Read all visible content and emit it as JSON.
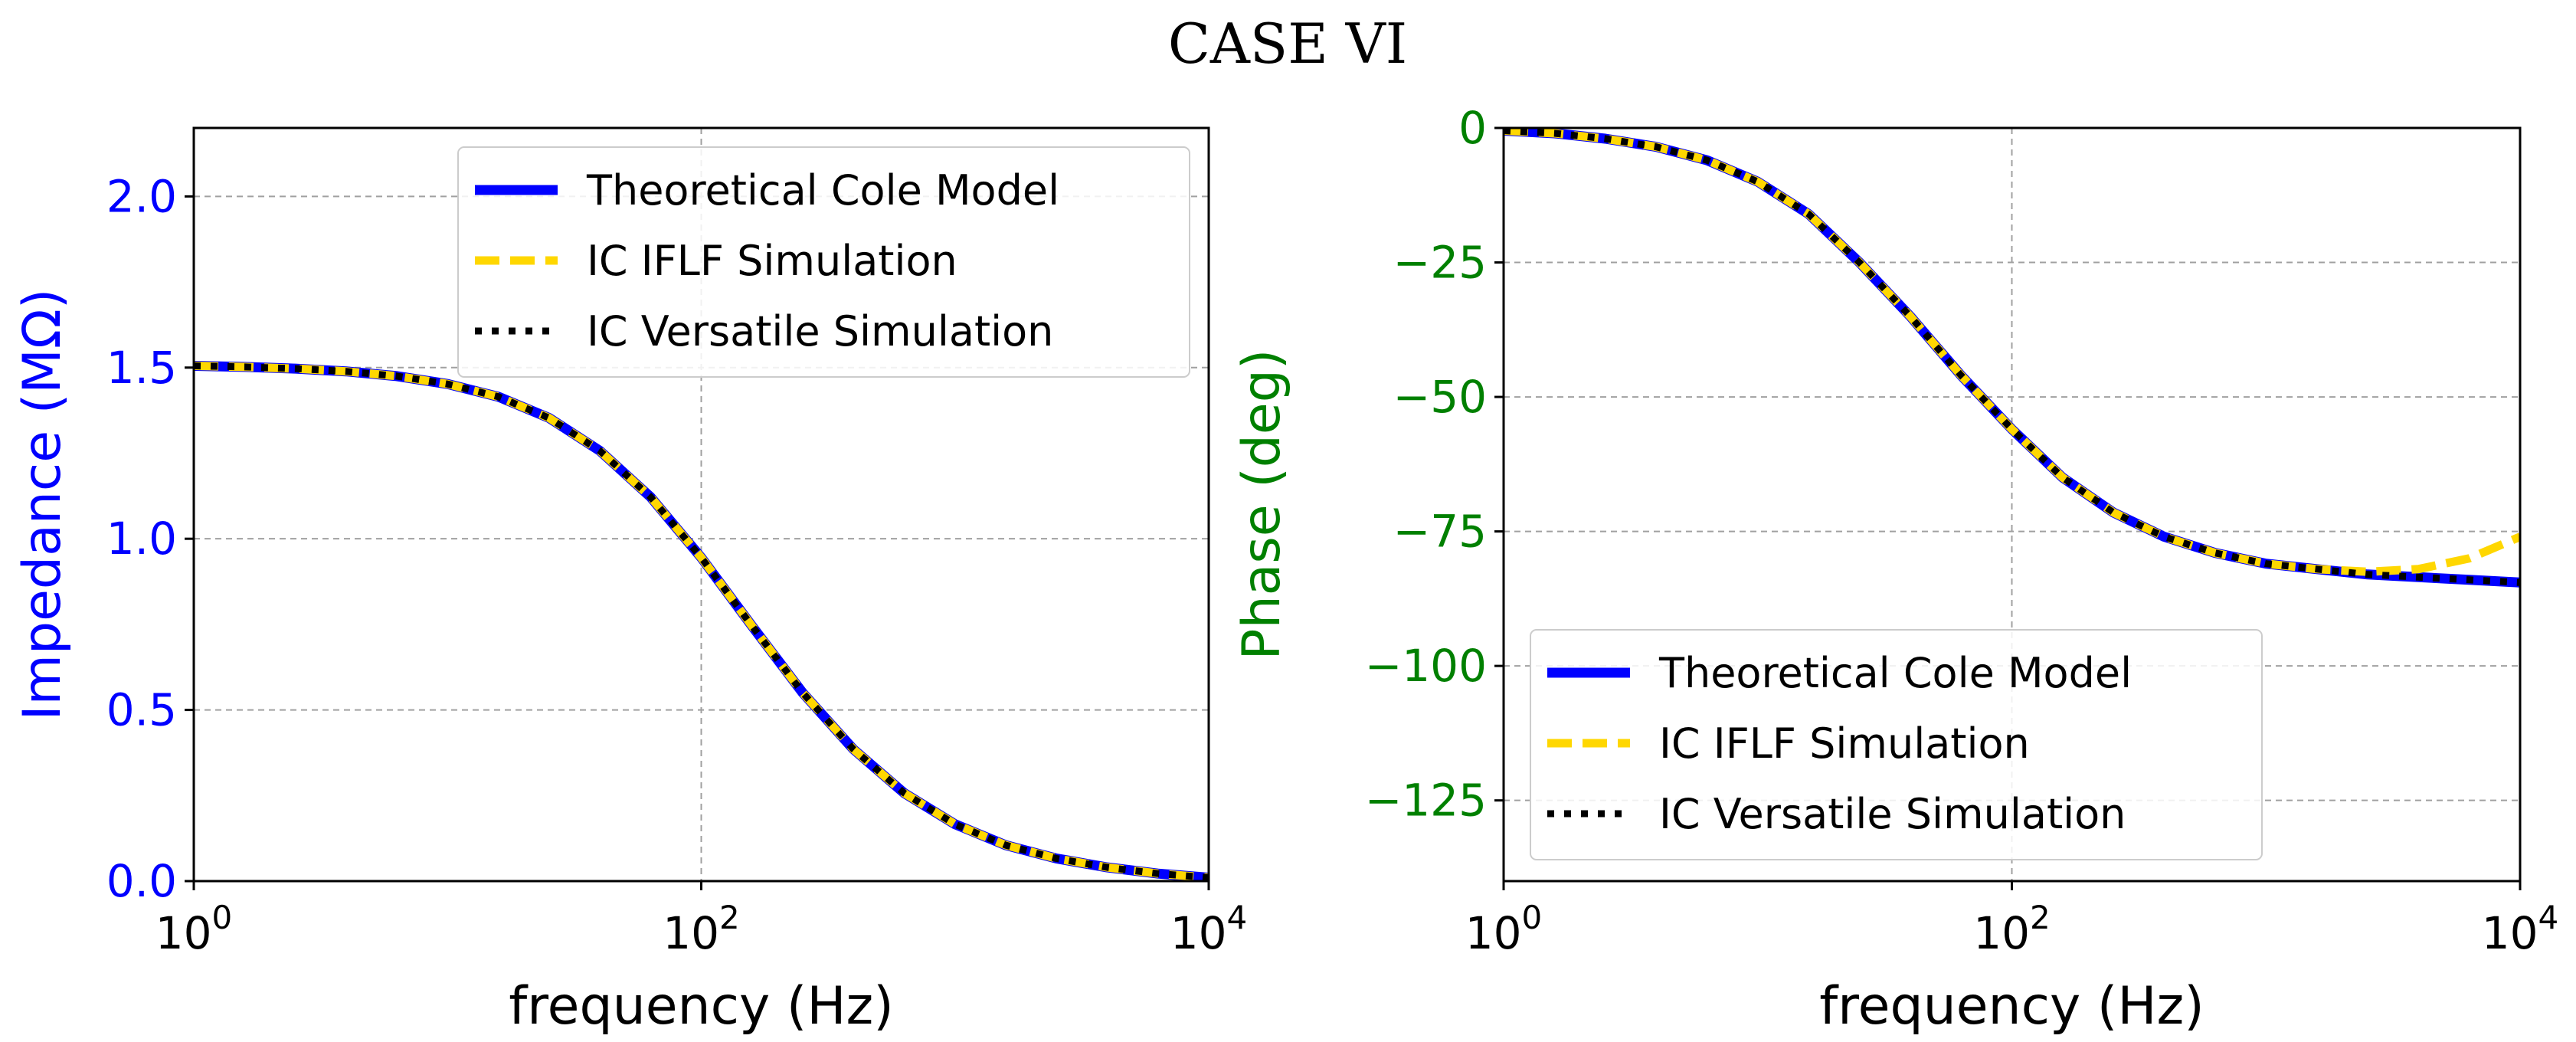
{
  "title": "CASE VI",
  "chart_data": [
    {
      "type": "line",
      "xlabel": "frequency (Hz)",
      "ylabel": "Impedance (MΩ)",
      "xscale": "log",
      "xlim": [
        1,
        10000
      ],
      "ylim": [
        0,
        2.2
      ],
      "x_ticks": [
        {
          "value": 1,
          "base": "10",
          "exp": "0"
        },
        {
          "value": 100,
          "base": "10",
          "exp": "2"
        },
        {
          "value": 10000,
          "base": "10",
          "exp": "4"
        }
      ],
      "y_ticks": [
        {
          "value": 0.0,
          "label": "0.0"
        },
        {
          "value": 0.5,
          "label": "0.5"
        },
        {
          "value": 1.0,
          "label": "1.0"
        },
        {
          "value": 1.5,
          "label": "1.5"
        },
        {
          "value": 2.0,
          "label": "2.0"
        }
      ],
      "ylabel_color": "#0000ff",
      "ytick_color": "#0000ff",
      "grid": true,
      "legend_position": "upper right",
      "x": [
        1,
        1.585,
        2.512,
        3.981,
        6.31,
        10,
        15.85,
        25.12,
        39.81,
        63.1,
        100,
        158.5,
        251.2,
        398.1,
        631,
        1000,
        1585,
        2512,
        3981,
        6310,
        10000
      ],
      "series": [
        {
          "name": "Theoretical Cole Model",
          "color": "#0000ff",
          "style": "solid",
          "values": [
            1.505,
            1.502,
            1.497,
            1.489,
            1.475,
            1.452,
            1.415,
            1.353,
            1.257,
            1.122,
            0.945,
            0.745,
            0.55,
            0.385,
            0.257,
            0.166,
            0.105,
            0.066,
            0.04,
            0.022,
            0.01
          ]
        },
        {
          "name": "IC IFLF Simulation",
          "color": "#ffd700",
          "style": "dashed",
          "values": [
            1.505,
            1.502,
            1.497,
            1.489,
            1.475,
            1.452,
            1.415,
            1.353,
            1.257,
            1.122,
            0.945,
            0.745,
            0.55,
            0.385,
            0.257,
            0.166,
            0.105,
            0.066,
            0.04,
            0.022,
            0.01
          ]
        },
        {
          "name": "IC Versatile Simulation",
          "color": "#000000",
          "style": "dotted",
          "values": [
            1.505,
            1.502,
            1.497,
            1.489,
            1.475,
            1.452,
            1.415,
            1.353,
            1.257,
            1.122,
            0.945,
            0.745,
            0.55,
            0.385,
            0.257,
            0.166,
            0.105,
            0.066,
            0.04,
            0.022,
            0.01
          ]
        }
      ]
    },
    {
      "type": "line",
      "xlabel": "frequency (Hz)",
      "ylabel": "Phase (deg)",
      "xscale": "log",
      "xlim": [
        1,
        10000
      ],
      "ylim": [
        -140,
        0
      ],
      "x_ticks": [
        {
          "value": 1,
          "base": "10",
          "exp": "0"
        },
        {
          "value": 100,
          "base": "10",
          "exp": "2"
        },
        {
          "value": 10000,
          "base": "10",
          "exp": "4"
        }
      ],
      "y_ticks": [
        {
          "value": 0,
          "label": "0"
        },
        {
          "value": -25,
          "label": "−25"
        },
        {
          "value": -50,
          "label": "−50"
        },
        {
          "value": -75,
          "label": "−75"
        },
        {
          "value": -100,
          "label": "−100"
        },
        {
          "value": -125,
          "label": "−125"
        }
      ],
      "ylabel_color": "#008000",
      "ytick_color": "#008000",
      "grid": true,
      "legend_position": "lower left",
      "x": [
        1,
        1.585,
        2.512,
        3.981,
        6.31,
        10,
        15.85,
        25.12,
        39.81,
        63.1,
        100,
        158.5,
        251.2,
        398.1,
        631,
        1000,
        1585,
        2512,
        3981,
        6310,
        10000
      ],
      "series": [
        {
          "name": "Theoretical Cole Model",
          "color": "#0000ff",
          "style": "solid",
          "values": [
            -0.5,
            -1,
            -2,
            -3.5,
            -6,
            -10,
            -16,
            -25,
            -35,
            -46,
            -56,
            -65,
            -71.5,
            -76,
            -79,
            -81,
            -82,
            -83,
            -83.5,
            -84,
            -84.5
          ]
        },
        {
          "name": "IC IFLF Simulation",
          "color": "#ffd700",
          "style": "dashed",
          "values": [
            -0.5,
            -1,
            -2,
            -3.5,
            -6,
            -10,
            -16,
            -25,
            -35,
            -46,
            -56,
            -65,
            -71.5,
            -76,
            -79,
            -81,
            -82,
            -82.5,
            -82,
            -80,
            -76
          ]
        },
        {
          "name": "IC Versatile Simulation",
          "color": "#000000",
          "style": "dotted",
          "values": [
            -0.5,
            -1,
            -2,
            -3.5,
            -6,
            -10,
            -16,
            -25,
            -35,
            -46,
            -56,
            -65,
            -71.5,
            -76,
            -79,
            -81,
            -82,
            -83,
            -83.5,
            -84,
            -84.5
          ]
        }
      ]
    }
  ]
}
